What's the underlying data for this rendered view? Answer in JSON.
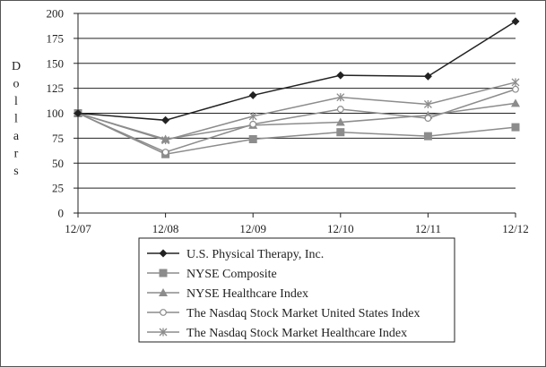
{
  "chart_data": {
    "type": "line",
    "title": "",
    "xlabel": "",
    "ylabel": "Dollars",
    "categories": [
      "12/07",
      "12/08",
      "12/09",
      "12/10",
      "12/11",
      "12/12"
    ],
    "ylim": [
      0,
      200
    ],
    "yticks": [
      0,
      25,
      50,
      75,
      100,
      125,
      150,
      175,
      200
    ],
    "grid": "horizontal",
    "legend_position": "bottom",
    "series": [
      {
        "name": "U.S. Physical Therapy, Inc.",
        "values": [
          100,
          93,
          118,
          138,
          137,
          192
        ],
        "marker": "diamond",
        "color": "#222222"
      },
      {
        "name": "NYSE Composite",
        "values": [
          100,
          59,
          74,
          81,
          77,
          86
        ],
        "marker": "square",
        "color": "#8c8c8c"
      },
      {
        "name": "NYSE Healthcare Index",
        "values": [
          100,
          74,
          88,
          91,
          98,
          110
        ],
        "marker": "triangle",
        "color": "#8c8c8c"
      },
      {
        "name": "The Nasdaq Stock Market United States Index",
        "values": [
          100,
          61,
          89,
          104,
          95,
          124
        ],
        "marker": "circle",
        "color": "#8c8c8c"
      },
      {
        "name": "The Nasdaq Stock Market Healthcare Index",
        "values": [
          100,
          73,
          97,
          116,
          109,
          131
        ],
        "marker": "star",
        "color": "#8c8c8c"
      }
    ]
  }
}
